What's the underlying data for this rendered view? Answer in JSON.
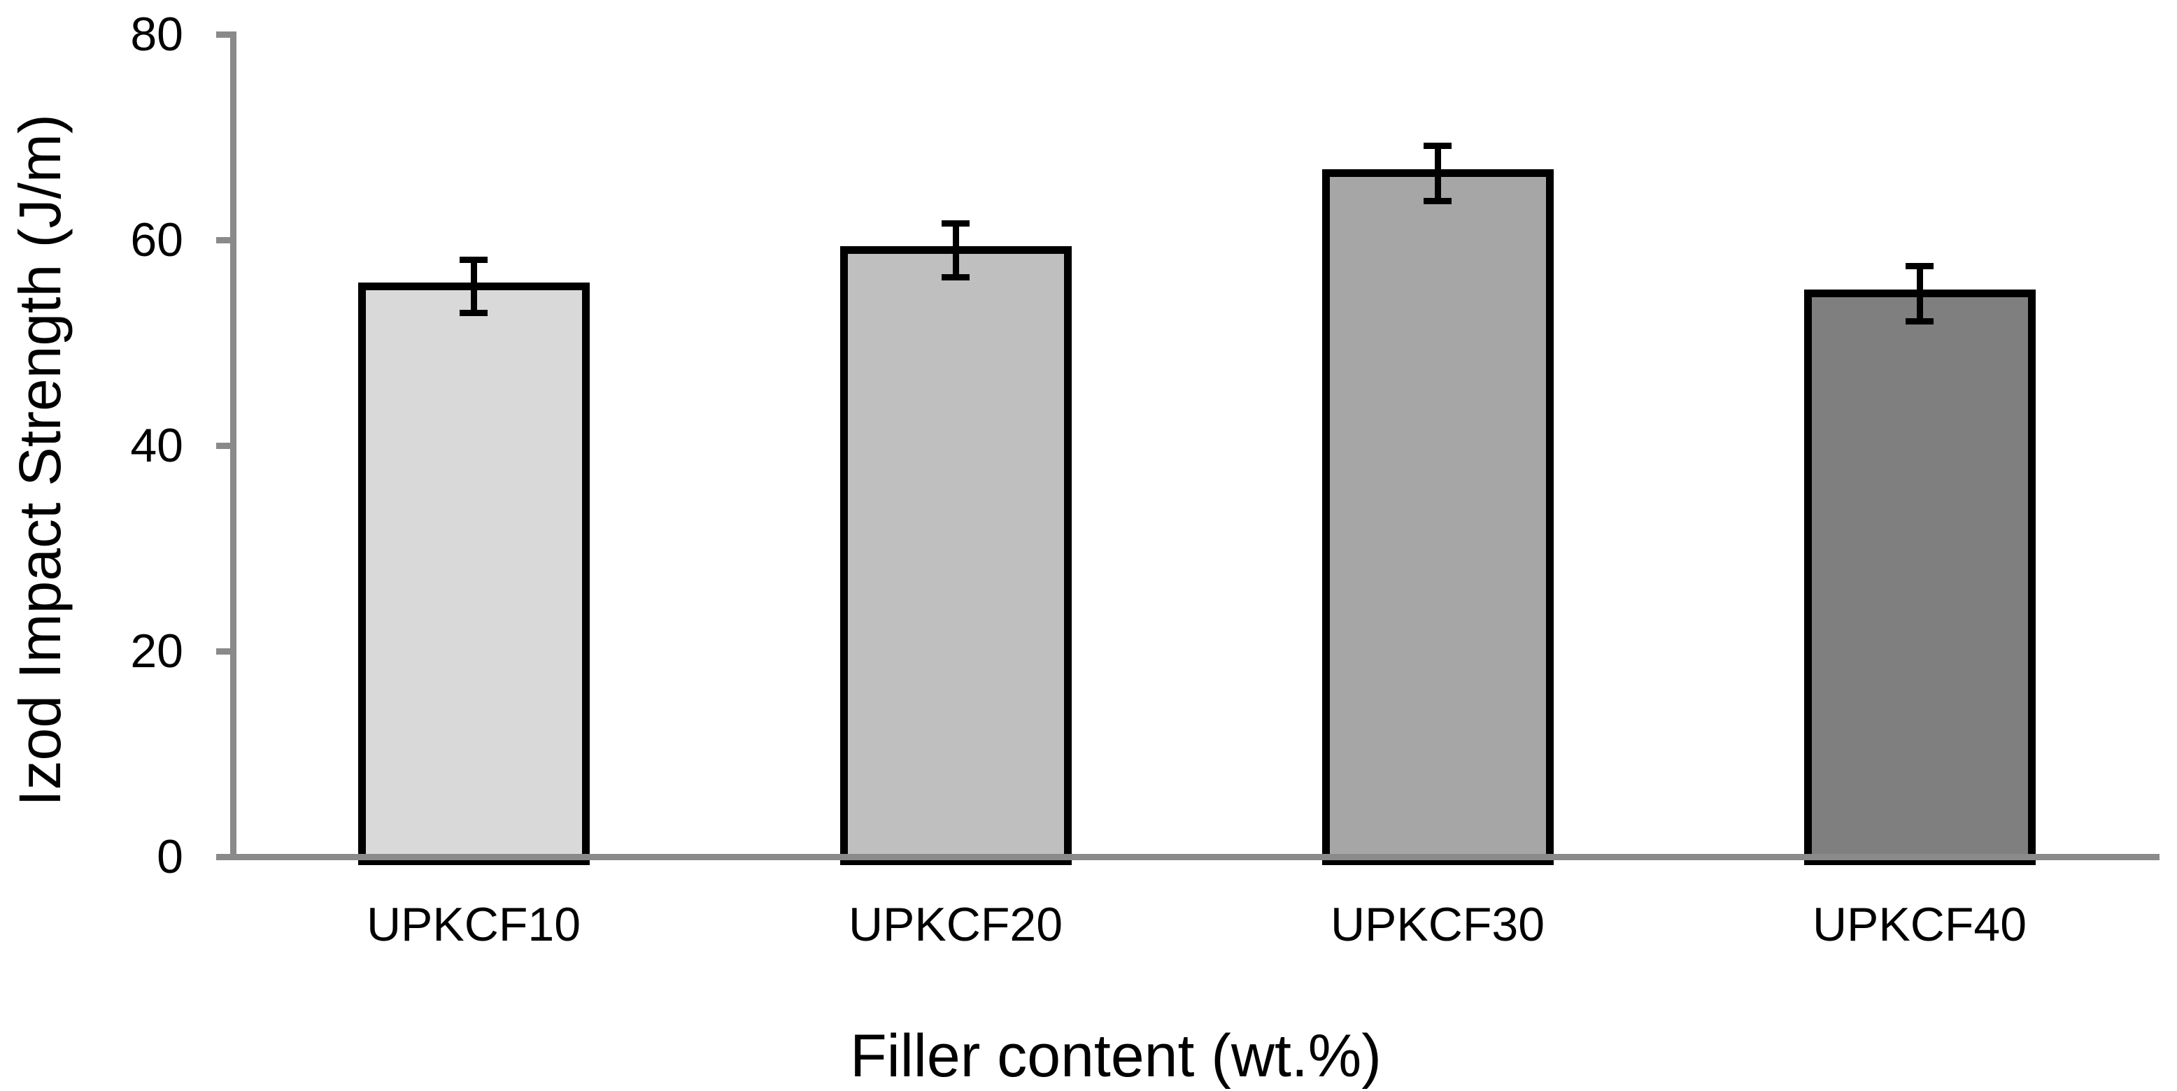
{
  "chart_data": {
    "type": "bar",
    "xlabel": "Filler content (wt.%)",
    "ylabel": "Izod Impact Strength (J/m)",
    "categories": [
      "UPKCF10",
      "UPKCF20",
      "UPKCF30",
      "UPKCF40"
    ],
    "values": [
      55.5,
      59.0,
      66.5,
      54.8
    ],
    "error_bars": [
      2.6,
      2.6,
      2.7,
      2.7
    ],
    "ylim": [
      0,
      80
    ],
    "yticks": [
      0,
      20,
      40,
      60,
      80
    ],
    "grid": false,
    "legend": "none",
    "bar_fill_colors": [
      "#d9d9d9",
      "#bfbfbf",
      "#a6a6a6",
      "#7f7f7f"
    ],
    "bar_outline_color": "#000000",
    "error_bar_color": "#000000",
    "axis_line_color": "#8a8a8a",
    "label_color": "#000000"
  }
}
